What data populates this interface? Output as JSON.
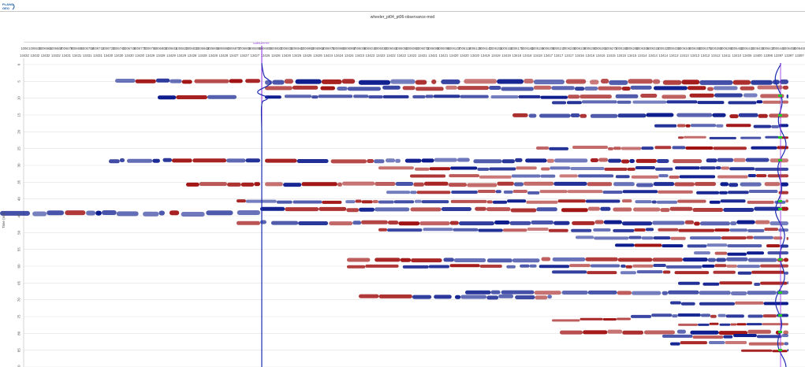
{
  "app": {
    "logo_text": "PLANO\nGEO"
  },
  "header": {
    "title": "wheeler_pt04_pt06-observance-mod"
  },
  "marker": {
    "label": "cal#d####"
  },
  "axes": {
    "y_label": "Time (ms)",
    "row1_labels": [
      "1006",
      "1006535",
      "1006661",
      "1006667",
      "1006679",
      "1006695",
      "1006708",
      "1006712",
      "1006723",
      "1006745",
      "1006749",
      "1006770",
      "1006785",
      "1006800",
      "1006811",
      "1006822",
      "1006833",
      "1006844",
      "1006855",
      "1006866",
      "1006877",
      "1006888",
      "1006898",
      "1006909",
      "1006920",
      "1006931",
      "1006942",
      "1006953",
      "1006964",
      "1006975",
      "1006986",
      "1006997",
      "1006008",
      "1006019",
      "1006030",
      "1006041",
      "1006052",
      "1006063",
      "1006074",
      "1006085",
      "1006096",
      "1006107",
      "1006118",
      "1006129",
      "1006140",
      "1006151",
      "1006162",
      "1006173",
      "1006184",
      "1006195",
      "1006206",
      "1006217",
      "1006228",
      "1006239",
      "1006250",
      "1006261",
      "1006272",
      "1006283",
      "1006294",
      "1006305",
      "1006316",
      "1006327",
      "1006338",
      "1006349",
      "1006360",
      "1006371",
      "1006382",
      "1006393",
      "1006404",
      "1006415",
      "1006426",
      "1006437",
      "1006448",
      "1006459",
      "1006469"
    ],
    "row2_labels": [
      "13432",
      "13432",
      "13432",
      "13432",
      "13431",
      "13431",
      "13431",
      "13431",
      "13430",
      "13430",
      "13430",
      "13430",
      "13429",
      "13429",
      "13429",
      "13429",
      "13428",
      "13428",
      "13428",
      "13428",
      "13427",
      "13427",
      "13427",
      "13426",
      "13426",
      "13426",
      "13425",
      "13425",
      "13425",
      "13424",
      "13424",
      "13424",
      "13423",
      "13423",
      "13423",
      "13422",
      "13422",
      "13422",
      "13421",
      "13421",
      "13421",
      "13420",
      "13420",
      "13420",
      "13419",
      "13419",
      "13419",
      "13418",
      "13418",
      "13418",
      "13417",
      "13417",
      "13417",
      "13416",
      "13416",
      "13416",
      "13415",
      "13415",
      "13415",
      "13414",
      "13414",
      "13414",
      "13413",
      "13413",
      "13413",
      "13412",
      "13412",
      "13411",
      "13410",
      "13405",
      "13400",
      "13398",
      "13397",
      "13397",
      "13397"
    ],
    "y_ticks": [
      "0",
      "5",
      "10",
      "15",
      "20",
      "25",
      "30",
      "35",
      "40",
      "45",
      "50",
      "55",
      "60",
      "65",
      "70",
      "75",
      "80",
      "85",
      "90"
    ]
  },
  "colors": {
    "positive": "#a01010",
    "negative": "#0a1a8c",
    "marker": "#8a2be2",
    "trace": "#1a2ab0",
    "pick": "#22cc22"
  }
}
